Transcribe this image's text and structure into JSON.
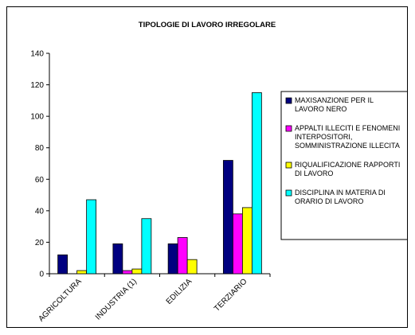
{
  "chart_data": {
    "type": "bar",
    "title": "TIPOLOGIE DI LAVORO IRREGOLARE",
    "xlabel": "",
    "ylabel": "",
    "ylim": [
      0,
      140
    ],
    "yticks": [
      0,
      20,
      40,
      60,
      80,
      100,
      120,
      140
    ],
    "grid": false,
    "legend_position": "right",
    "categories": [
      "AGRICOLTURA",
      "INDUSTRIA (1)",
      "EDILIZIA",
      "TERZIARIO"
    ],
    "series": [
      {
        "name": "MAXISANZIONE PER IL LAVORO NERO",
        "legend_lines": [
          "MAXISANZIONE PER IL",
          "LAVORO NERO"
        ],
        "color": "#000080",
        "values": [
          12,
          19,
          19,
          72
        ]
      },
      {
        "name": "APPALTI ILLECITI E FENOMENI INTERPOSITORI, SOMMINISTRAZIONE ILLECITA",
        "legend_lines": [
          "APPALTI ILLECITI E FENOMENI",
          "INTERPOSITORI,",
          "SOMMINISTRAZIONE ILLECITA"
        ],
        "color": "#ff00ff",
        "values": [
          0,
          2,
          23,
          38
        ]
      },
      {
        "name": "RIQUALIFICAZIONE RAPPORTI DI LAVORO",
        "legend_lines": [
          "RIQUALIFICAZIONE RAPPORTI",
          "DI LAVORO"
        ],
        "color": "#ffff00",
        "values": [
          2,
          3,
          9,
          42
        ]
      },
      {
        "name": "DISCIPLINA IN MATERIA DI ORARIO DI LAVORO",
        "legend_lines": [
          "DISCIPLINA IN MATERIA DI",
          "ORARIO DI LAVORO"
        ],
        "color": "#00ffff",
        "values": [
          47,
          35,
          0,
          115
        ]
      }
    ]
  }
}
